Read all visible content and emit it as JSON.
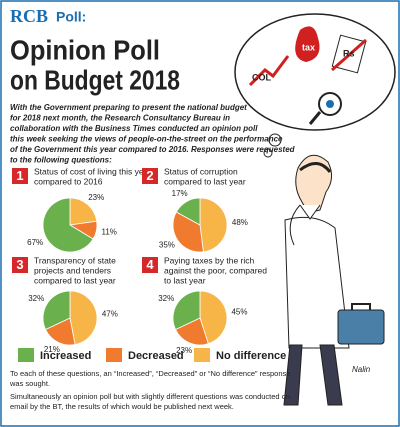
{
  "header": {
    "logo": "RCB",
    "label": "Poll:",
    "title_lines": [
      "Opinion Poll",
      "on Budget 2018"
    ]
  },
  "intro_lines": [
    "With the Government preparing to present the national budget",
    "for 2018 next month, the Research Consultancy Bureau in",
    "collaboration with the Business Times conducted an opinion poll",
    "this week seeking the views of people-on-the-street on the performance",
    "of the Government this year compared to 2016. Responses were requested",
    "to the following questions:"
  ],
  "legend": {
    "categories": [
      "Increased",
      "Decreased",
      "No difference"
    ],
    "colors": [
      "#6ab04c",
      "#f07a2e",
      "#f7b548"
    ]
  },
  "chart_data": [
    {
      "type": "pie",
      "number": "1",
      "title_lines": [
        "Status of cost of living this year",
        "compared to 2016"
      ],
      "values": [
        67,
        11,
        23
      ],
      "value_labels": [
        "67%",
        "11%",
        "23%"
      ]
    },
    {
      "type": "pie",
      "number": "2",
      "title_lines": [
        "Status of corruption",
        "compared to last year"
      ],
      "values": [
        17,
        35,
        48
      ],
      "value_labels": [
        "17%",
        "35%",
        "48%"
      ]
    },
    {
      "type": "pie",
      "number": "3",
      "title_lines": [
        "Transparency of state",
        "projects and tenders",
        "compared to last year"
      ],
      "values": [
        32,
        21,
        47
      ],
      "value_labels": [
        "32%",
        "21%",
        "47%"
      ]
    },
    {
      "type": "pie",
      "number": "4",
      "title_lines": [
        "Paying taxes by the rich",
        "against the poor, compared",
        "to last year"
      ],
      "values": [
        32,
        23,
        45
      ],
      "value_labels": [
        "32%",
        "23%",
        "45%"
      ]
    }
  ],
  "footer_lines": [
    "To each of these questions, an “Increased”, “Decreased” or “No difference” response",
    "was sought.",
    "Simultaneously an opinion poll but with slightly different questions was conducted on",
    "email by the BT, the results of which would be published next week."
  ],
  "cartoon": {
    "icons": [
      "COL",
      "tax",
      "Rs"
    ],
    "signature": "Nalin"
  }
}
